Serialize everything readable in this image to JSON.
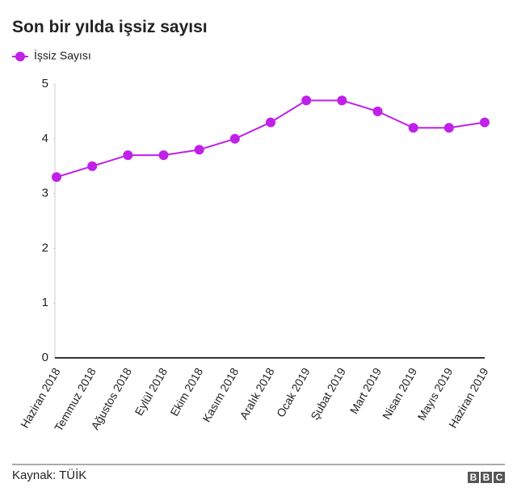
{
  "chart_data": {
    "type": "line",
    "title": "Son bir yılda işsiz sayısı",
    "categories": [
      "Haziran 2018",
      "Temmuz 2018",
      "Ağustos 2018",
      "Eylül 2018",
      "Ekim 2018",
      "Kasım 2018",
      "Aralık 2018",
      "Ocak 2019",
      "Şubat 2019",
      "Mart 2019",
      "Nisan 2019",
      "Mayıs 2019",
      "Haziran 2019"
    ],
    "series": [
      {
        "name": "İşsiz Sayısı",
        "color": "#c020e8",
        "values": [
          3.3,
          3.5,
          3.7,
          3.7,
          3.8,
          4.0,
          4.3,
          4.7,
          4.7,
          4.5,
          4.2,
          4.2,
          4.3
        ]
      }
    ],
    "ylim": [
      0,
      5
    ],
    "yticks": [
      0,
      1,
      2,
      3,
      4,
      5
    ],
    "grid": false,
    "legend": "top-left",
    "source": "Kaynak: TÜİK",
    "logo": [
      "B",
      "B",
      "C"
    ]
  }
}
